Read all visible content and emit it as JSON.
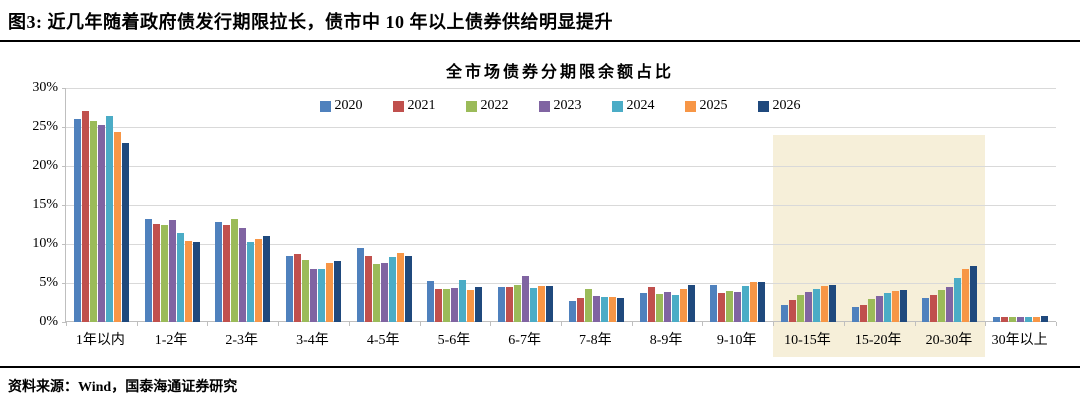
{
  "figure": {
    "title": "图3:  近几年随着政府债发行期限拉长，债市中 10 年以上债券供给明显提升",
    "source": "资料来源：Wind，国泰海通证券研究"
  },
  "chart_data": {
    "type": "bar",
    "title": "全市场债券分期限余额占比",
    "categories": [
      "1年以内",
      "1-2年",
      "2-3年",
      "3-4年",
      "4-5年",
      "5-6年",
      "6-7年",
      "7-8年",
      "8-9年",
      "9-10年",
      "10-15年",
      "15-20年",
      "20-30年",
      "30年以上"
    ],
    "series": [
      {
        "name": "2020",
        "color": "#4F81BD",
        "values": [
          26.0,
          13.2,
          12.8,
          8.5,
          9.5,
          5.2,
          4.5,
          2.7,
          3.7,
          4.8,
          2.2,
          1.9,
          3.1,
          0.7
        ]
      },
      {
        "name": "2021",
        "color": "#C0504D",
        "values": [
          27.0,
          12.6,
          12.4,
          8.7,
          8.5,
          4.3,
          4.5,
          3.1,
          4.5,
          3.7,
          2.8,
          2.2,
          3.5,
          0.7
        ]
      },
      {
        "name": "2022",
        "color": "#9BBB59",
        "values": [
          25.8,
          12.4,
          13.2,
          7.9,
          7.4,
          4.2,
          4.8,
          4.3,
          3.6,
          4.0,
          3.5,
          3.0,
          4.1,
          0.7
        ]
      },
      {
        "name": "2023",
        "color": "#8064A2",
        "values": [
          25.3,
          13.1,
          12.1,
          6.8,
          7.6,
          4.4,
          5.9,
          3.3,
          3.8,
          3.8,
          3.8,
          3.3,
          4.5,
          0.7
        ]
      },
      {
        "name": "2024",
        "color": "#4BACC6",
        "values": [
          26.4,
          11.4,
          10.2,
          6.8,
          8.3,
          5.4,
          4.4,
          3.2,
          3.5,
          4.6,
          4.2,
          3.7,
          5.6,
          0.7
        ]
      },
      {
        "name": "2025",
        "color": "#F79646",
        "values": [
          24.4,
          10.4,
          10.7,
          7.6,
          8.9,
          4.1,
          4.6,
          3.2,
          4.2,
          5.1,
          4.6,
          4.0,
          6.8,
          0.7
        ]
      },
      {
        "name": "2026",
        "color": "#1F497D",
        "values": [
          22.9,
          10.3,
          11.0,
          7.8,
          8.5,
          4.5,
          4.6,
          3.1,
          4.7,
          5.1,
          4.7,
          4.1,
          7.2,
          0.8
        ]
      }
    ],
    "ylim": [
      0,
      30
    ],
    "ytick_step": 5,
    "ytick_suffix": "%",
    "grid": true,
    "legend_position": "top",
    "highlight": {
      "categories": [
        "10-15年",
        "15-20年",
        "20-30年"
      ],
      "color": "#F6EFD9"
    },
    "axis_color": "#BFBFBF",
    "gridline_color": "#D9D9D9"
  }
}
